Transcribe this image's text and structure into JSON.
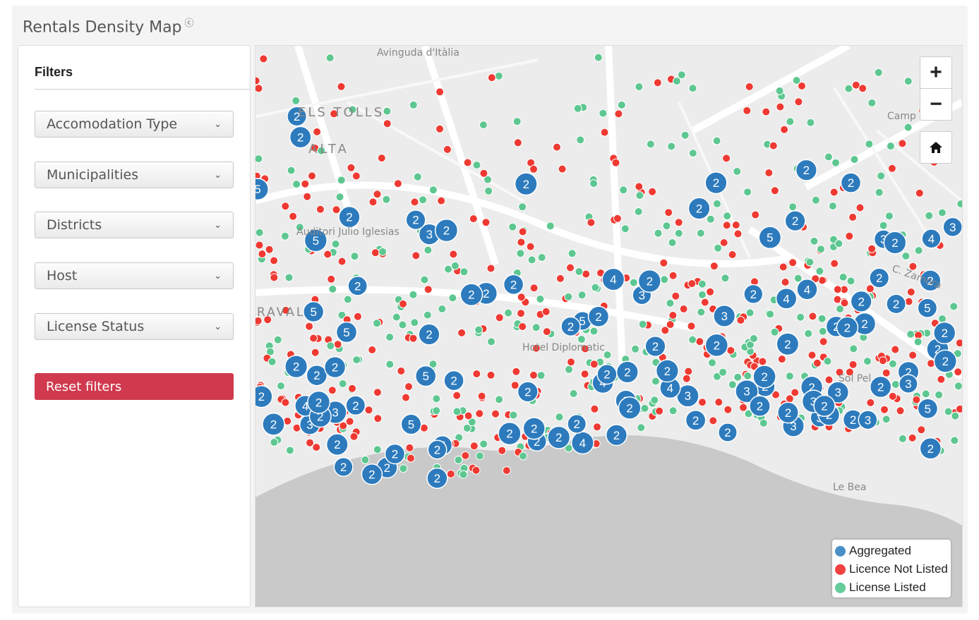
{
  "panel": {
    "title": "Rentals Density Map",
    "help_glyph": "Ⓞ"
  },
  "filters": {
    "heading": "Filters",
    "dropdowns": [
      "Accomodation Type",
      "Municipalities",
      "Districts",
      "Host",
      "License Status"
    ],
    "reset_label": "Reset filters"
  },
  "map": {
    "zoom_in": "+",
    "zoom_out": "−",
    "home_glyph": "⌂",
    "labels": [
      "Avinguda d'Itàlia",
      "ELS TOLLS",
      "ALTA",
      "Auditori Julio Iglesias",
      "RAVAL",
      "Hotel Diplomatic",
      "Camp",
      "C. Zamora",
      "Sol Pel",
      "Le Bea"
    ],
    "legend": [
      {
        "label": "Aggregated",
        "color": "#4a90c8"
      },
      {
        "label": "Licence Not Listed",
        "color": "#f04040"
      },
      {
        "label": "License Listed",
        "color": "#66cc99"
      }
    ],
    "colors": {
      "aggregated": "#2d7bbd",
      "not_listed": "#ee3a32",
      "listed": "#5ec791"
    }
  }
}
